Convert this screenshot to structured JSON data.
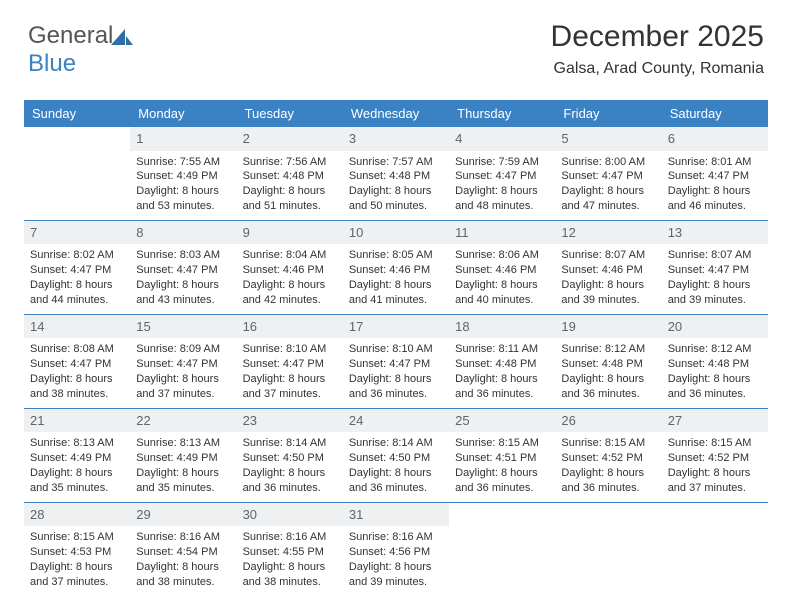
{
  "logo": {
    "text_a": "General",
    "text_b": "Blue"
  },
  "title": "December 2025",
  "subtitle": "Galsa, Arad County, Romania",
  "colors": {
    "header_bg": "#3b82c4",
    "header_text": "#ffffff",
    "daynum_bg": "#eef0f2",
    "daynum_text": "#5c6670",
    "rule": "#3b82c4",
    "body_text": "#333333"
  },
  "daysOfWeek": [
    "Sunday",
    "Monday",
    "Tuesday",
    "Wednesday",
    "Thursday",
    "Friday",
    "Saturday"
  ],
  "weeks": [
    [
      {
        "n": "",
        "sr": "",
        "ss": "",
        "dl": ""
      },
      {
        "n": "1",
        "sr": "7:55 AM",
        "ss": "4:49 PM",
        "dl": "8 hours and 53 minutes."
      },
      {
        "n": "2",
        "sr": "7:56 AM",
        "ss": "4:48 PM",
        "dl": "8 hours and 51 minutes."
      },
      {
        "n": "3",
        "sr": "7:57 AM",
        "ss": "4:48 PM",
        "dl": "8 hours and 50 minutes."
      },
      {
        "n": "4",
        "sr": "7:59 AM",
        "ss": "4:47 PM",
        "dl": "8 hours and 48 minutes."
      },
      {
        "n": "5",
        "sr": "8:00 AM",
        "ss": "4:47 PM",
        "dl": "8 hours and 47 minutes."
      },
      {
        "n": "6",
        "sr": "8:01 AM",
        "ss": "4:47 PM",
        "dl": "8 hours and 46 minutes."
      }
    ],
    [
      {
        "n": "7",
        "sr": "8:02 AM",
        "ss": "4:47 PM",
        "dl": "8 hours and 44 minutes."
      },
      {
        "n": "8",
        "sr": "8:03 AM",
        "ss": "4:47 PM",
        "dl": "8 hours and 43 minutes."
      },
      {
        "n": "9",
        "sr": "8:04 AM",
        "ss": "4:46 PM",
        "dl": "8 hours and 42 minutes."
      },
      {
        "n": "10",
        "sr": "8:05 AM",
        "ss": "4:46 PM",
        "dl": "8 hours and 41 minutes."
      },
      {
        "n": "11",
        "sr": "8:06 AM",
        "ss": "4:46 PM",
        "dl": "8 hours and 40 minutes."
      },
      {
        "n": "12",
        "sr": "8:07 AM",
        "ss": "4:46 PM",
        "dl": "8 hours and 39 minutes."
      },
      {
        "n": "13",
        "sr": "8:07 AM",
        "ss": "4:47 PM",
        "dl": "8 hours and 39 minutes."
      }
    ],
    [
      {
        "n": "14",
        "sr": "8:08 AM",
        "ss": "4:47 PM",
        "dl": "8 hours and 38 minutes."
      },
      {
        "n": "15",
        "sr": "8:09 AM",
        "ss": "4:47 PM",
        "dl": "8 hours and 37 minutes."
      },
      {
        "n": "16",
        "sr": "8:10 AM",
        "ss": "4:47 PM",
        "dl": "8 hours and 37 minutes."
      },
      {
        "n": "17",
        "sr": "8:10 AM",
        "ss": "4:47 PM",
        "dl": "8 hours and 36 minutes."
      },
      {
        "n": "18",
        "sr": "8:11 AM",
        "ss": "4:48 PM",
        "dl": "8 hours and 36 minutes."
      },
      {
        "n": "19",
        "sr": "8:12 AM",
        "ss": "4:48 PM",
        "dl": "8 hours and 36 minutes."
      },
      {
        "n": "20",
        "sr": "8:12 AM",
        "ss": "4:48 PM",
        "dl": "8 hours and 36 minutes."
      }
    ],
    [
      {
        "n": "21",
        "sr": "8:13 AM",
        "ss": "4:49 PM",
        "dl": "8 hours and 35 minutes."
      },
      {
        "n": "22",
        "sr": "8:13 AM",
        "ss": "4:49 PM",
        "dl": "8 hours and 35 minutes."
      },
      {
        "n": "23",
        "sr": "8:14 AM",
        "ss": "4:50 PM",
        "dl": "8 hours and 36 minutes."
      },
      {
        "n": "24",
        "sr": "8:14 AM",
        "ss": "4:50 PM",
        "dl": "8 hours and 36 minutes."
      },
      {
        "n": "25",
        "sr": "8:15 AM",
        "ss": "4:51 PM",
        "dl": "8 hours and 36 minutes."
      },
      {
        "n": "26",
        "sr": "8:15 AM",
        "ss": "4:52 PM",
        "dl": "8 hours and 36 minutes."
      },
      {
        "n": "27",
        "sr": "8:15 AM",
        "ss": "4:52 PM",
        "dl": "8 hours and 37 minutes."
      }
    ],
    [
      {
        "n": "28",
        "sr": "8:15 AM",
        "ss": "4:53 PM",
        "dl": "8 hours and 37 minutes."
      },
      {
        "n": "29",
        "sr": "8:16 AM",
        "ss": "4:54 PM",
        "dl": "8 hours and 38 minutes."
      },
      {
        "n": "30",
        "sr": "8:16 AM",
        "ss": "4:55 PM",
        "dl": "8 hours and 38 minutes."
      },
      {
        "n": "31",
        "sr": "8:16 AM",
        "ss": "4:56 PM",
        "dl": "8 hours and 39 minutes."
      },
      {
        "n": "",
        "sr": "",
        "ss": "",
        "dl": ""
      },
      {
        "n": "",
        "sr": "",
        "ss": "",
        "dl": ""
      },
      {
        "n": "",
        "sr": "",
        "ss": "",
        "dl": ""
      }
    ]
  ],
  "labels": {
    "sunrise": "Sunrise:",
    "sunset": "Sunset:",
    "daylight": "Daylight:"
  }
}
